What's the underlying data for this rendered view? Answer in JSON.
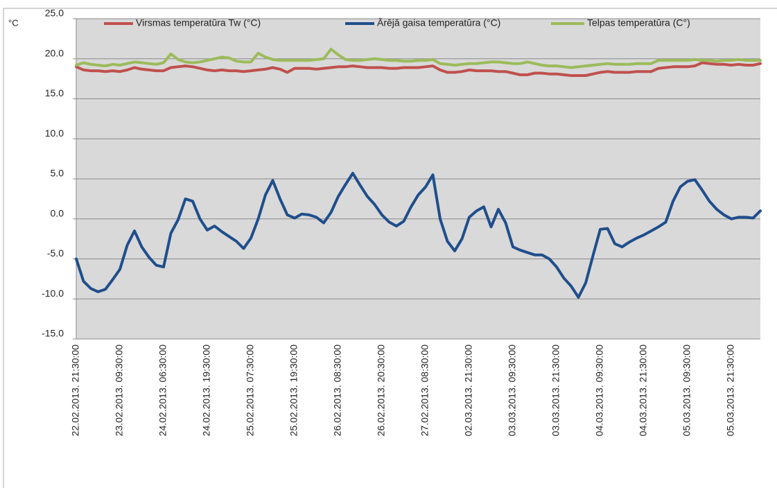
{
  "chart_data": {
    "type": "line",
    "y_label": "°C",
    "ylim": [
      -15,
      25
    ],
    "yticks": [
      {
        "value": -15,
        "label": "-15.0"
      },
      {
        "value": -10,
        "label": "-10.0"
      },
      {
        "value": -5,
        "label": "-5.0"
      },
      {
        "value": 0,
        "label": "0.0"
      },
      {
        "value": 5,
        "label": "5.0"
      },
      {
        "value": 10,
        "label": "10.0"
      },
      {
        "value": 15,
        "label": "15.0"
      },
      {
        "value": 20,
        "label": "20.0"
      },
      {
        "value": 25,
        "label": "25.0"
      }
    ],
    "grid": true,
    "legend": "top",
    "categories": [
      "22.02.2013. 21:30:00",
      null,
      null,
      null,
      null,
      null,
      "23.02.2013. 09:30:00",
      null,
      null,
      null,
      null,
      null,
      "24.02.2013. 06:30:00",
      null,
      null,
      null,
      null,
      null,
      "24.02.2013. 19:30:00",
      null,
      null,
      null,
      null,
      null,
      "25.02.2013. 07:30:00",
      null,
      null,
      null,
      null,
      null,
      "25.02.2013. 19:30:00",
      null,
      null,
      null,
      null,
      null,
      "26.02.2013. 08:30:00",
      null,
      null,
      null,
      null,
      null,
      "26.02.2013. 20:30:00",
      null,
      null,
      null,
      null,
      null,
      "27.02.2013. 08:30:00",
      null,
      null,
      null,
      null,
      null,
      "02.03.2013. 21:30:00",
      null,
      null,
      null,
      null,
      null,
      "03.03.2013. 09:30:00",
      null,
      null,
      null,
      null,
      null,
      "03.03.2013. 21:30:00",
      null,
      null,
      null,
      null,
      null,
      "04.03.2013. 09:30:00",
      null,
      null,
      null,
      null,
      null,
      "04.03.2013. 21:30:00",
      null,
      null,
      null,
      null,
      null,
      "05.03.2013. 09:30:00",
      null,
      null,
      null,
      null,
      null,
      "05.03.2013. 21:30:00",
      null,
      null,
      null,
      null
    ],
    "series": [
      {
        "name": "Virsmas temperatūra Tw (°C)",
        "color": "#c0504d",
        "values": [
          19.0,
          18.6,
          18.5,
          18.5,
          18.4,
          18.5,
          18.4,
          18.6,
          18.9,
          18.7,
          18.6,
          18.5,
          18.5,
          18.9,
          19.0,
          19.1,
          19.0,
          18.8,
          18.6,
          18.5,
          18.6,
          18.5,
          18.5,
          18.4,
          18.5,
          18.6,
          18.7,
          18.9,
          18.7,
          18.3,
          18.8,
          18.8,
          18.8,
          18.7,
          18.8,
          18.9,
          19.0,
          19.0,
          19.1,
          19.0,
          18.9,
          18.9,
          18.9,
          18.8,
          18.8,
          18.9,
          18.9,
          18.9,
          19.0,
          19.1,
          18.6,
          18.3,
          18.3,
          18.4,
          18.6,
          18.5,
          18.5,
          18.5,
          18.4,
          18.4,
          18.2,
          18.0,
          18.0,
          18.2,
          18.2,
          18.1,
          18.1,
          18.0,
          17.9,
          17.9,
          17.9,
          18.1,
          18.3,
          18.4,
          18.3,
          18.3,
          18.3,
          18.4,
          18.4,
          18.4,
          18.8,
          18.9,
          19.0,
          19.0,
          19.0,
          19.1,
          19.5,
          19.4,
          19.3,
          19.3,
          19.2,
          19.3,
          19.2,
          19.2,
          19.4
        ]
      },
      {
        "name": "Ārējā gaisa temperatūra (°C)",
        "color": "#1f4e8c",
        "values": [
          -5.0,
          -7.8,
          -8.7,
          -9.1,
          -8.8,
          -7.6,
          -6.3,
          -3.3,
          -1.5,
          -3.5,
          -4.8,
          -5.8,
          -6.0,
          -1.8,
          -0.1,
          2.5,
          2.2,
          0.0,
          -1.4,
          -0.9,
          -1.6,
          -2.2,
          -2.8,
          -3.7,
          -2.4,
          0.0,
          3.0,
          4.8,
          2.5,
          0.5,
          0.1,
          0.6,
          0.5,
          0.2,
          -0.5,
          0.8,
          2.8,
          4.3,
          5.7,
          4.2,
          2.8,
          1.8,
          0.5,
          -0.4,
          -0.9,
          -0.3,
          1.5,
          3.0,
          4.0,
          5.5,
          0.0,
          -2.8,
          -4.0,
          -2.5,
          0.2,
          1.0,
          1.5,
          -1.0,
          1.2,
          -0.5,
          -3.5,
          -3.9,
          -4.2,
          -4.5,
          -4.5,
          -5.0,
          -6.0,
          -7.4,
          -8.4,
          -9.8,
          -8.0,
          -4.6,
          -1.3,
          -1.2,
          -3.1,
          -3.5,
          -2.9,
          -2.4,
          -2.0,
          -1.5,
          -1.0,
          -0.4,
          2.2,
          4.0,
          4.7,
          4.9,
          3.6,
          2.2,
          1.2,
          0.5,
          0.0,
          0.2,
          0.2,
          0.1,
          1.0
        ]
      },
      {
        "name": "Telpas temperatūra (C°)",
        "color": "#9bbb59",
        "values": [
          19.2,
          19.5,
          19.3,
          19.2,
          19.1,
          19.3,
          19.2,
          19.4,
          19.6,
          19.5,
          19.4,
          19.3,
          19.5,
          20.6,
          19.9,
          19.6,
          19.5,
          19.6,
          19.8,
          20.0,
          20.2,
          20.1,
          19.7,
          19.6,
          19.6,
          20.7,
          20.2,
          19.9,
          19.8,
          19.8,
          19.8,
          19.8,
          19.8,
          19.9,
          20.0,
          21.2,
          20.5,
          19.9,
          19.8,
          19.8,
          19.9,
          20.0,
          19.9,
          19.8,
          19.8,
          19.7,
          19.7,
          19.8,
          19.8,
          19.9,
          19.4,
          19.3,
          19.2,
          19.3,
          19.4,
          19.4,
          19.5,
          19.6,
          19.6,
          19.5,
          19.4,
          19.4,
          19.6,
          19.4,
          19.2,
          19.1,
          19.1,
          19.0,
          18.9,
          19.0,
          19.1,
          19.2,
          19.3,
          19.4,
          19.3,
          19.3,
          19.3,
          19.4,
          19.4,
          19.4,
          19.8,
          19.8,
          19.8,
          19.8,
          19.8,
          19.9,
          19.8,
          19.8,
          19.7,
          19.8,
          19.8,
          19.9,
          19.8,
          19.8,
          19.8
        ]
      }
    ]
  }
}
